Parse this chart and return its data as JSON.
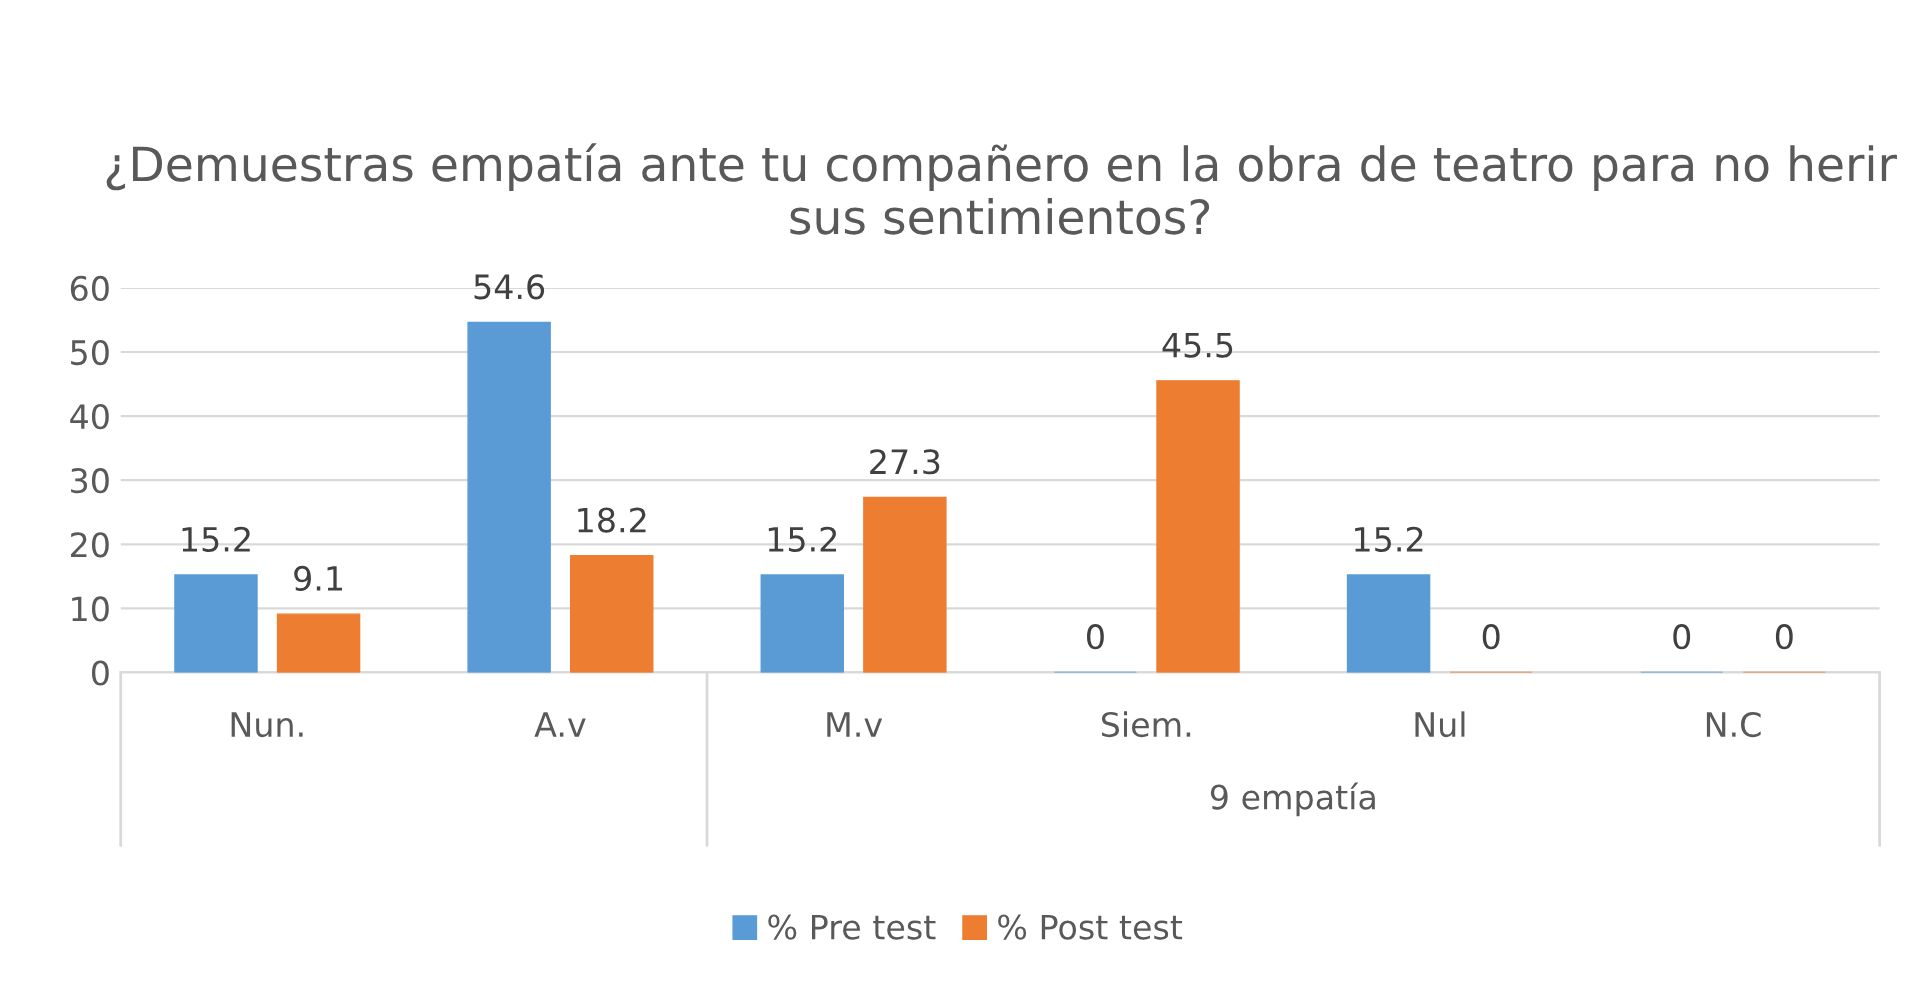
{
  "chart_data": {
    "type": "bar",
    "title": "¿Demuestras empatía ante tu compañero en la obra de teatro para no herir sus sentimientos?",
    "categories": [
      "Nun.",
      "A.v",
      "M.v",
      "Siem.",
      "Nul",
      "N.C"
    ],
    "series": [
      {
        "name": "% Pre test",
        "color": "#5b9bd5",
        "values": [
          15.2,
          54.6,
          15.2,
          0,
          15.2,
          0
        ]
      },
      {
        "name": "% Post test",
        "color": "#ed7d31",
        "values": [
          9.1,
          18.2,
          27.3,
          45.5,
          0,
          0
        ]
      }
    ],
    "annotations": [
      "9 empatía"
    ],
    "ylim": [
      0,
      60
    ],
    "yticks": [
      0,
      10,
      20,
      30,
      40,
      50,
      60
    ],
    "grid": "y",
    "legend": "bottom",
    "data_labels": true
  }
}
